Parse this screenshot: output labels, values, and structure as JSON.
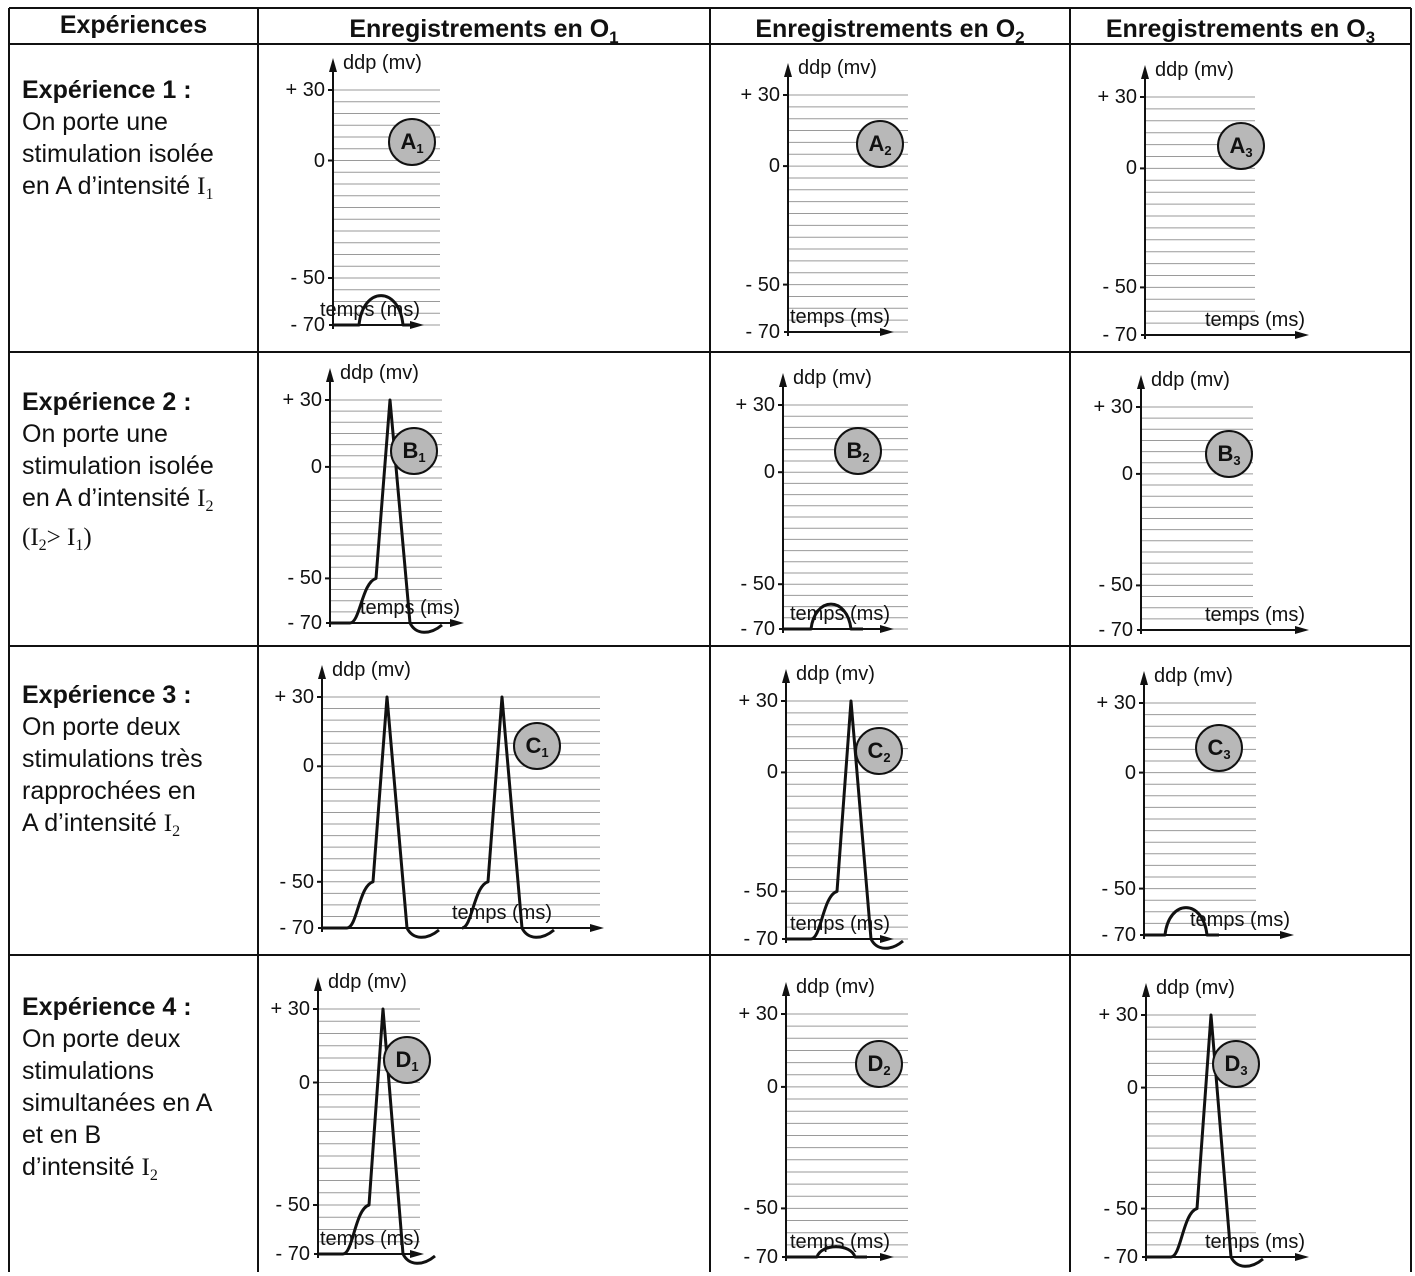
{
  "header": {
    "col_experiences": "Expériences",
    "col_o1": "Enregistrements en O",
    "col_o1_sub": "1",
    "col_o2": "Enregistrements en O",
    "col_o2_sub": "2",
    "col_o3": "Enregistrements en O",
    "col_o3_sub": "3"
  },
  "experiments": [
    {
      "title": "Expérience 1 :",
      "line1": "On porte une",
      "line2": "stimulation isolée",
      "line3": "en A d’intensité ",
      "line3_var": "I",
      "line3_sub": "1"
    },
    {
      "title": "Expérience 2 :",
      "line1": "On porte une",
      "line2": "stimulation isolée",
      "line3": "en A d’intensité ",
      "line3_var": "I",
      "line3_sub": "2",
      "cond_a": "(I",
      "cond_a_sub": "2",
      "cond_b": "> I",
      "cond_b_sub": "1",
      "cond_c": ")"
    },
    {
      "title": "Expérience 3 :",
      "line1": "On porte deux",
      "line2": "stimulations très",
      "line3": "rapprochées en",
      "line4": "A d’intensité ",
      "line4_var": "I",
      "line4_sub": "2"
    },
    {
      "title": "Expérience 4 :",
      "line1": "On porte deux",
      "line2": "stimulations",
      "line3": "simultanées en A",
      "line4": "et en B",
      "line5": "d’intensité ",
      "line5_var": "I",
      "line5_sub": "2"
    }
  ],
  "axes": {
    "y_label": "ddp (mv)",
    "x_label": "temps (ms)",
    "tick_30": "+ 30",
    "tick_0": "0",
    "tick_m50": "- 50",
    "tick_m70": "- 70"
  },
  "chart_data": [
    {
      "type": "line",
      "panel": "A1",
      "xlabel": "temps (ms)",
      "ylabel": "ddp (mv)",
      "y_ticks": [
        30,
        0,
        -50,
        -70
      ],
      "trace": "local potential peaking near -55 mV"
    },
    {
      "type": "line",
      "panel": "A2",
      "xlabel": "temps (ms)",
      "ylabel": "ddp (mv)",
      "y_ticks": [
        30,
        0,
        -50,
        -70
      ],
      "trace": "none"
    },
    {
      "type": "line",
      "panel": "A3",
      "xlabel": "temps (ms)",
      "ylabel": "ddp (mv)",
      "y_ticks": [
        30,
        0,
        -50,
        -70
      ],
      "trace": "none"
    },
    {
      "type": "line",
      "panel": "B1",
      "xlabel": "temps (ms)",
      "ylabel": "ddp (mv)",
      "y_ticks": [
        30,
        0,
        -50,
        -70
      ],
      "trace": "single action potential peaking at +30 mV"
    },
    {
      "type": "line",
      "panel": "B2",
      "xlabel": "temps (ms)",
      "ylabel": "ddp (mv)",
      "y_ticks": [
        30,
        0,
        -50,
        -70
      ],
      "trace": "local potential peaking near -57 mV"
    },
    {
      "type": "line",
      "panel": "B3",
      "xlabel": "temps (ms)",
      "ylabel": "ddp (mv)",
      "y_ticks": [
        30,
        0,
        -50,
        -70
      ],
      "trace": "none"
    },
    {
      "type": "line",
      "panel": "C1",
      "xlabel": "temps (ms)",
      "ylabel": "ddp (mv)",
      "y_ticks": [
        30,
        0,
        -50,
        -70
      ],
      "trace": "two action potentials peaking at +30 mV"
    },
    {
      "type": "line",
      "panel": "C2",
      "xlabel": "temps (ms)",
      "ylabel": "ddp (mv)",
      "y_ticks": [
        30,
        0,
        -50,
        -70
      ],
      "trace": "single action potential peaking at +30 mV"
    },
    {
      "type": "line",
      "panel": "C3",
      "xlabel": "temps (ms)",
      "ylabel": "ddp (mv)",
      "y_ticks": [
        30,
        0,
        -50,
        -70
      ],
      "trace": "local potential peaking near -56 mV"
    },
    {
      "type": "line",
      "panel": "D1",
      "xlabel": "temps (ms)",
      "ylabel": "ddp (mv)",
      "y_ticks": [
        30,
        0,
        -50,
        -70
      ],
      "trace": "single action potential peaking at +30 mV"
    },
    {
      "type": "line",
      "panel": "D2",
      "xlabel": "temps (ms)",
      "ylabel": "ddp (mv)",
      "y_ticks": [
        30,
        0,
        -50,
        -70
      ],
      "trace": "small local potential peaking near -66 mV"
    },
    {
      "type": "line",
      "panel": "D3",
      "xlabel": "temps (ms)",
      "ylabel": "ddp (mv)",
      "y_ticks": [
        30,
        0,
        -50,
        -70
      ],
      "trace": "single action potential peaking at +30 mV"
    }
  ],
  "panels": [
    {
      "letter": "A",
      "sub": "1"
    },
    {
      "letter": "A",
      "sub": "2"
    },
    {
      "letter": "A",
      "sub": "3"
    },
    {
      "letter": "B",
      "sub": "1"
    },
    {
      "letter": "B",
      "sub": "2"
    },
    {
      "letter": "B",
      "sub": "3"
    },
    {
      "letter": "C",
      "sub": "1"
    },
    {
      "letter": "C",
      "sub": "2"
    },
    {
      "letter": "C",
      "sub": "3"
    },
    {
      "letter": "D",
      "sub": "1"
    },
    {
      "letter": "D",
      "sub": "2"
    },
    {
      "letter": "D",
      "sub": "3"
    }
  ],
  "colors": {
    "line": "#111111",
    "grid": "#9a9a9a",
    "badge": "#b8b8b8",
    "background": "#ffffff"
  }
}
